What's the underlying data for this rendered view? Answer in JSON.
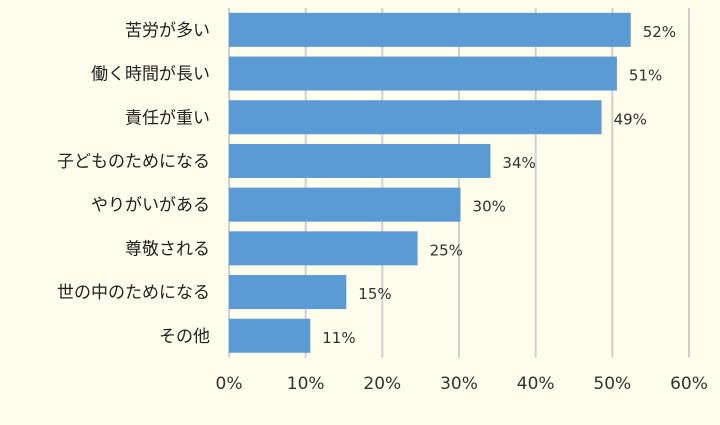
{
  "chart_data": {
    "type": "bar",
    "orientation": "horizontal",
    "categories": [
      "苦労が多い",
      "働く時間が長い",
      "責任が重い",
      "子どものためになる",
      "やりがいがある",
      "尊敬される",
      "世の中のためになる",
      "その他"
    ],
    "values": [
      52.4,
      50.6,
      48.6,
      34.1,
      30.2,
      24.6,
      15.3,
      10.6
    ],
    "value_labels": [
      "52%",
      "51%",
      "49%",
      "34%",
      "30%",
      "25%",
      "15%",
      "11%"
    ],
    "xlim": [
      0,
      60
    ],
    "xticks": [
      "0%",
      "10%",
      "20%",
      "30%",
      "40%",
      "50%",
      "60%"
    ],
    "grid": "vertical",
    "bar_color": "#5b9bd5",
    "background": "#fffdeb",
    "grid_color": "#d0d0d0"
  }
}
